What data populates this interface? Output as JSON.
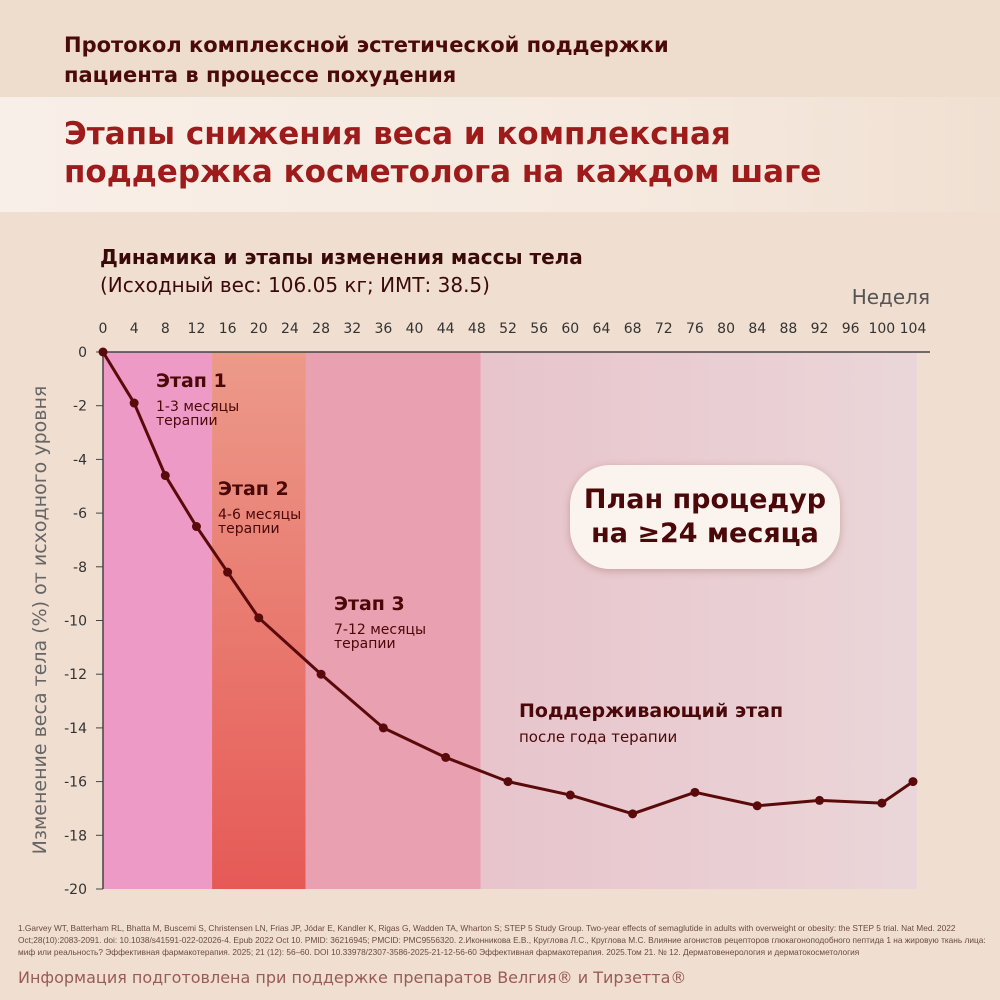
{
  "header": {
    "line1": "Протокол комплексной эстетической поддержки",
    "line2": "пациента в процессе похудения"
  },
  "title": {
    "line1": "Этапы снижения веса и комплексная",
    "line2": "поддержка косметолога на каждом шаге"
  },
  "subtitle": {
    "line1": "Динамика и этапы изменения массы тела",
    "line2": "(Исходный вес: 106.05 кг; ИМТ: 38.5)"
  },
  "plan_badge": {
    "line1": "План процедур",
    "line2": "на ≥24 месяца"
  },
  "stages": [
    {
      "title": "Этап 1",
      "sub1": "1-3 месяцы",
      "sub2": "терапии",
      "from": 0,
      "to": 14,
      "color": "#ee9ac6"
    },
    {
      "title": "Этап 2",
      "sub1": "4-6 месяцы",
      "sub2": "терапии",
      "from": 14,
      "to": 26,
      "color": "#e8605a"
    },
    {
      "title": "Этап 3",
      "sub1": "7-12 месяцы",
      "sub2": "терапии",
      "from": 26,
      "to": 48.5,
      "color": "#e9a0b0"
    },
    {
      "title": "Поддерживающий этап",
      "sub1": "после года терапии",
      "from": 48.5,
      "to": 104.5,
      "color": "#e6ccd6"
    }
  ],
  "chart_data": {
    "type": "line",
    "xlabel": "Неделя",
    "ylabel": "Изменение веса тела (%) от исходного уровня",
    "xticks": [
      0,
      4,
      8,
      12,
      16,
      20,
      24,
      28,
      32,
      36,
      40,
      44,
      48,
      52,
      56,
      60,
      64,
      68,
      72,
      76,
      80,
      84,
      88,
      92,
      96,
      100,
      104
    ],
    "yticks": [
      0,
      -2,
      -4,
      -6,
      -8,
      -10,
      -12,
      -14,
      -16,
      -18,
      -20
    ],
    "xlim": [
      0,
      104
    ],
    "ylim": [
      -20,
      0
    ],
    "x": [
      0,
      4,
      8,
      12,
      16,
      20,
      28,
      36,
      44,
      52,
      60,
      68,
      76,
      84,
      92,
      100,
      104
    ],
    "y": [
      0,
      -1.9,
      -4.6,
      -6.5,
      -8.2,
      -9.9,
      -12,
      -14,
      -15.1,
      -16,
      -16.5,
      -17.2,
      -16.4,
      -16.9,
      -16.7,
      -16.8,
      -16
    ],
    "line_color": "#5a0a0a"
  },
  "footnote": "1.Garvey WT, Batterham RL, Bhatta M, Buscemi S, Christensen LN, Frias JP, Jódar E, Kandler K, Rigas G, Wadden TA, Wharton S; STEP 5 Study Group. Two-year effects of semaglutide in adults with overweight or obesity: the STEP 5 trial. Nat Med. 2022 Oct;28(10):2083-2091. doi: 10.1038/s41591-022-02026-4. Epub 2022 Oct 10. PMID: 36216945; PMCID: PMC9556320. 2.Иконникова Е.В., Круглова Л.С., Круглова М.С. Влияние агонистов рецепторов глюкагоноподобного пептида 1 на жировую ткань лица: миф или реальность? Эффективная фармакотерапия. 2025; 21 (12): 56–60. DOI 10.33978/2307-3586-2025-21-12-56-60 Эффективная фармакотерапия. 2025.Том 21. № 12. Дерматовенерология и дерматокосметология",
  "info": "Информация подготовлена при поддержке препаратов Велгия® и Тирзетта®"
}
